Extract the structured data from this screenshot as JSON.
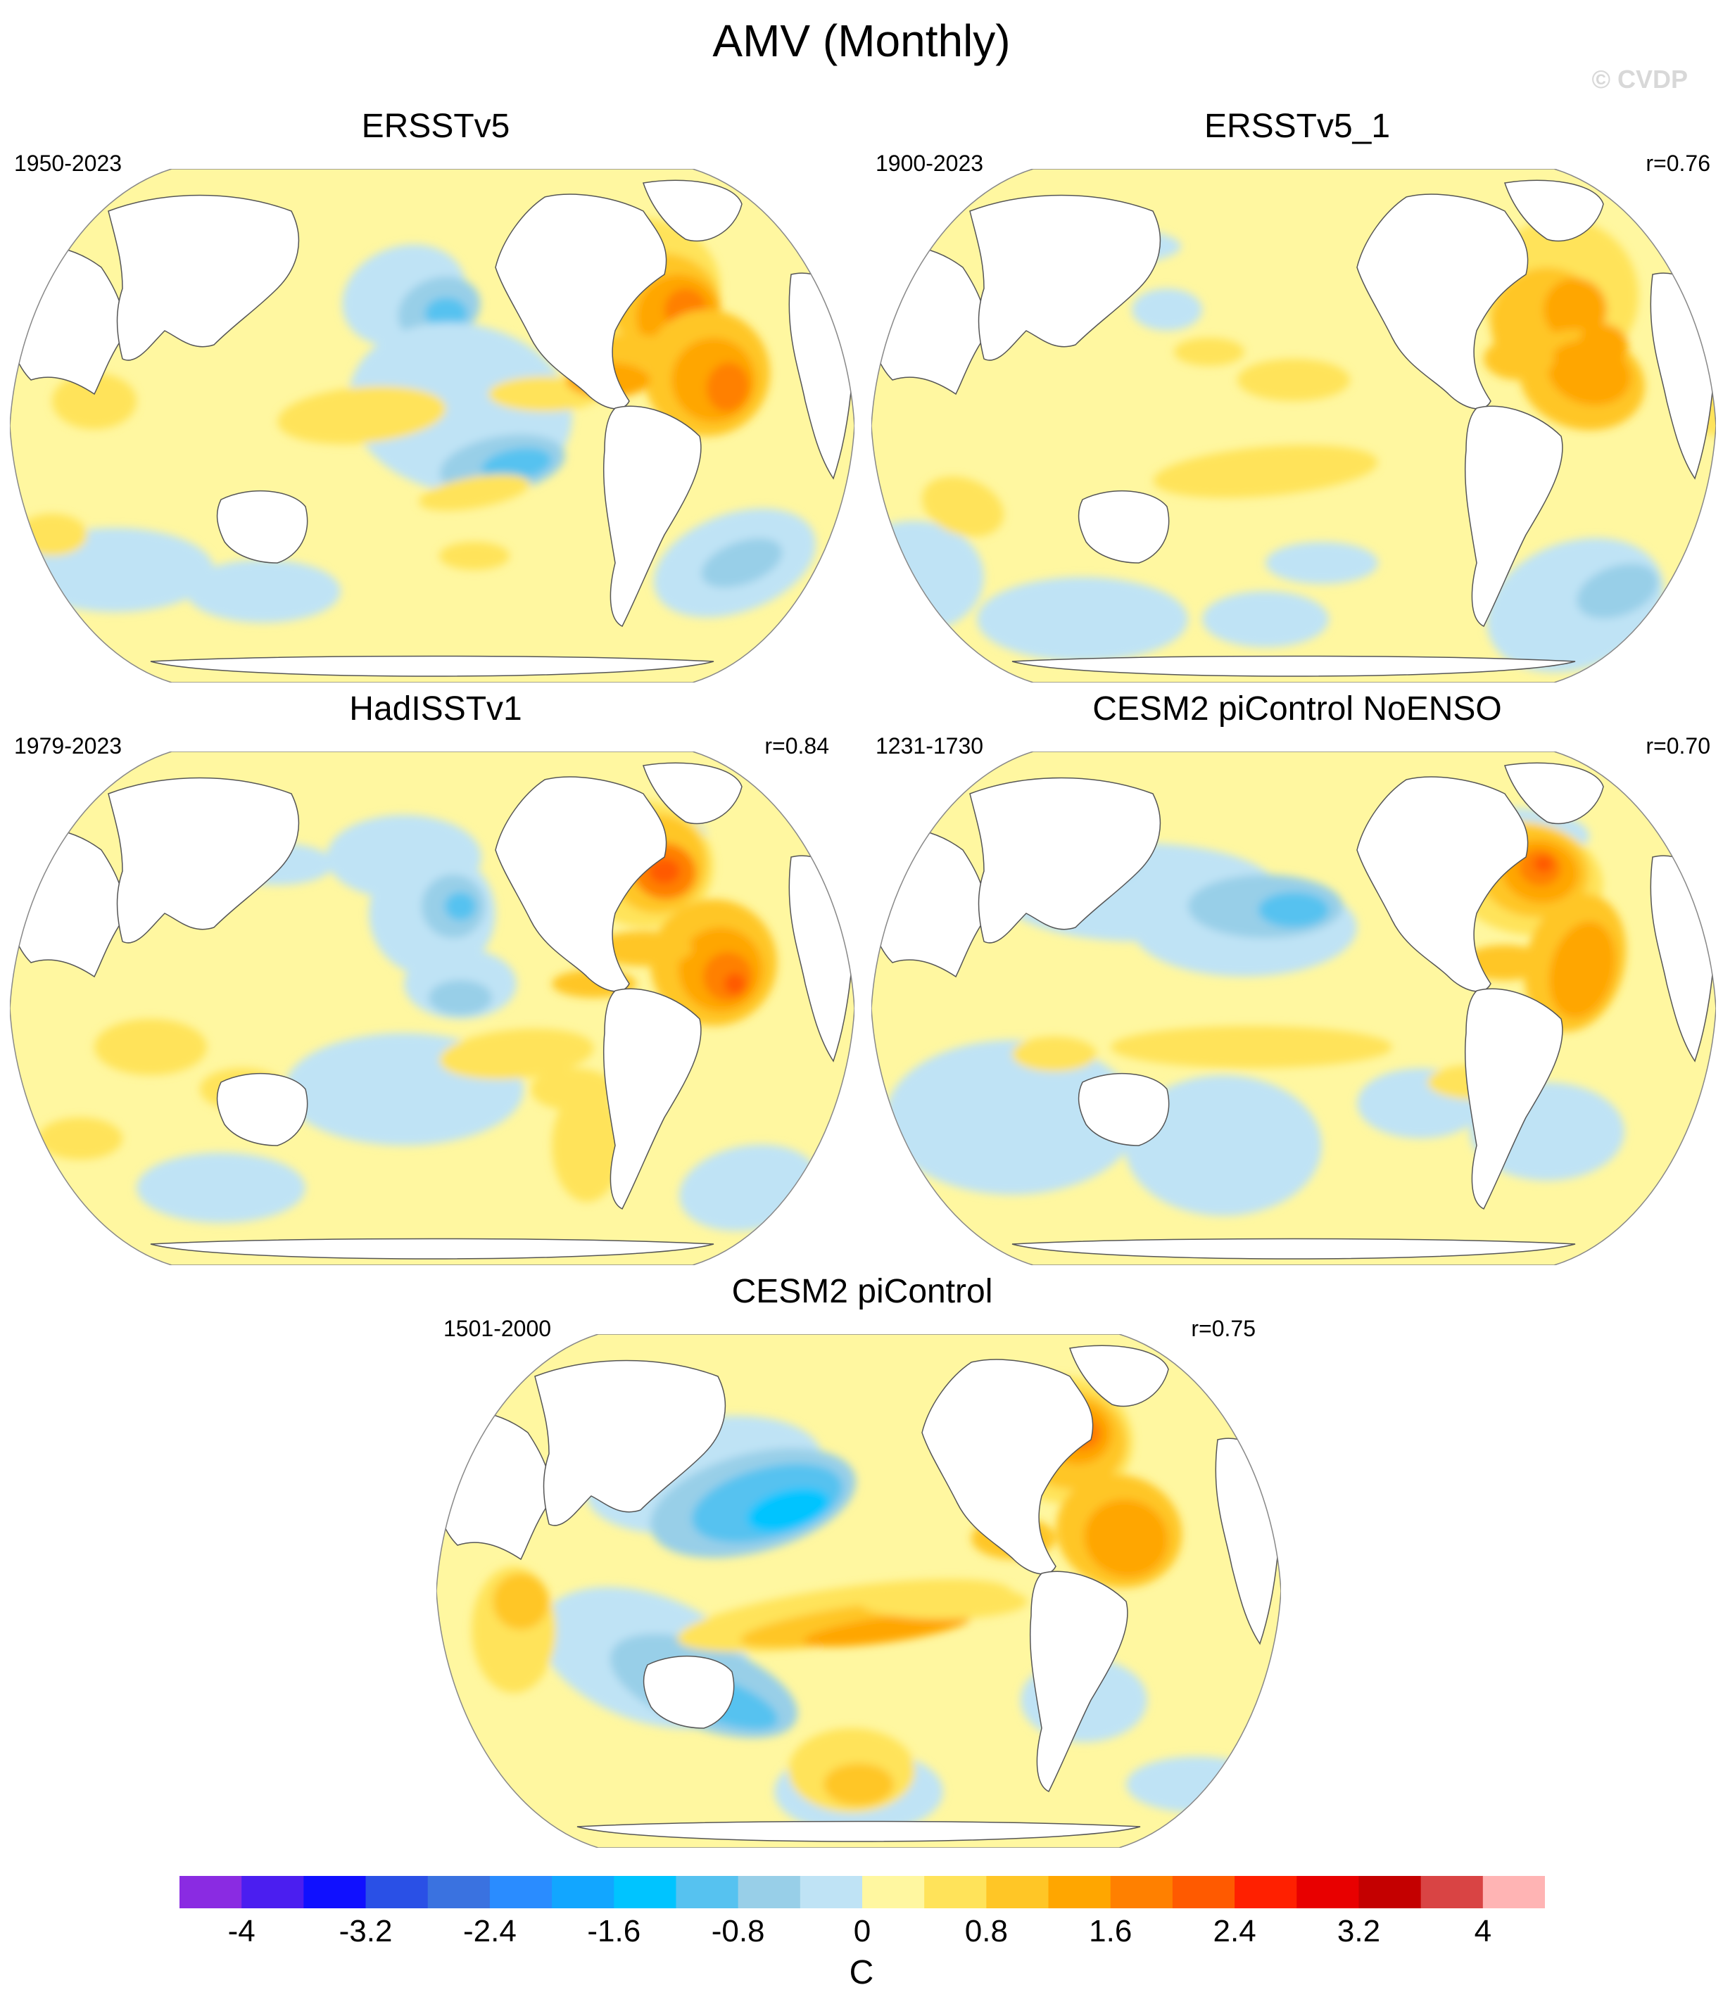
{
  "title": "AMV (Monthly)",
  "watermark": "© CVDP",
  "panels": [
    {
      "title": "ERSSTv5",
      "period": "1950-2023",
      "correlation": ""
    },
    {
      "title": "ERSSTv5_1",
      "period": "1900-2023",
      "correlation": "r=0.76"
    },
    {
      "title": "HadISSTv1",
      "period": "1979-2023",
      "correlation": "r=0.84"
    },
    {
      "title": "CESM2 piControl NoENSO",
      "period": "1231-1730",
      "correlation": "r=0.70"
    },
    {
      "title": "CESM2 piControl",
      "period": "1501-2000",
      "correlation": "r=0.75"
    }
  ],
  "colorbar": {
    "unit": "C",
    "tick_labels": [
      "-4",
      "-3.2",
      "-2.4",
      "-1.6",
      "-0.8",
      "0",
      "0.8",
      "1.6",
      "2.4",
      "3.2",
      "4"
    ],
    "colors": [
      "#8a2be2",
      "#4b1ef0",
      "#1010ff",
      "#2a50e6",
      "#3a72e0",
      "#2a8cff",
      "#12a6ff",
      "#00c4ff",
      "#56c2f0",
      "#98cfe8",
      "#bfe3f5",
      "#fff7a0",
      "#ffe35a",
      "#ffc626",
      "#ffa600",
      "#ff8000",
      "#ff5a00",
      "#ff2000",
      "#e80000",
      "#c40000",
      "#d94444",
      "#ffb4b4"
    ]
  },
  "colors": {
    "land": "#ffffff",
    "coast": "#555555",
    "neutral_ocean": "#fff7a0"
  }
}
